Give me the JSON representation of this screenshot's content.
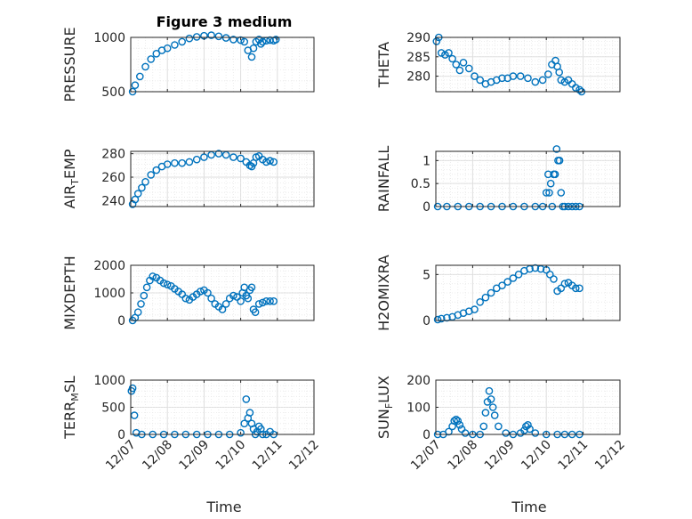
{
  "figure": {
    "title": "Figure 3 medium",
    "marker_color": "#0072BD",
    "x_tick_labels": [
      "12/07",
      "12/08",
      "12/09",
      "12/10",
      "12/11",
      "12/12"
    ],
    "x_label": "Time"
  },
  "chart_data": [
    {
      "type": "scatter",
      "ylabel": "PRESSURE",
      "ylim": [
        500,
        1000
      ],
      "yticks": [
        500,
        1000
      ],
      "xlim": [
        0,
        5
      ],
      "grid": true,
      "x": [
        0.05,
        0.12,
        0.25,
        0.4,
        0.55,
        0.7,
        0.85,
        1.0,
        1.2,
        1.4,
        1.6,
        1.8,
        2.0,
        2.2,
        2.4,
        2.6,
        2.8,
        3.0,
        3.1,
        3.2,
        3.3,
        3.35,
        3.42,
        3.5,
        3.55,
        3.6,
        3.7,
        3.8,
        3.9,
        3.96
      ],
      "y": [
        500,
        560,
        640,
        730,
        800,
        850,
        880,
        900,
        930,
        960,
        990,
        1005,
        1015,
        1020,
        1010,
        995,
        980,
        975,
        960,
        880,
        820,
        900,
        960,
        980,
        940,
        960,
        970,
        975,
        970,
        980
      ]
    },
    {
      "type": "scatter",
      "ylabel": "THETA",
      "ylim": [
        276,
        290
      ],
      "yticks": [
        280,
        285,
        290
      ],
      "xlim": [
        0,
        5
      ],
      "grid": true,
      "x": [
        0.02,
        0.08,
        0.15,
        0.25,
        0.35,
        0.45,
        0.55,
        0.65,
        0.75,
        0.9,
        1.05,
        1.2,
        1.35,
        1.5,
        1.65,
        1.8,
        1.95,
        2.1,
        2.3,
        2.5,
        2.7,
        2.9,
        3.05,
        3.15,
        3.25,
        3.3,
        3.35,
        3.4,
        3.5,
        3.6,
        3.7,
        3.8,
        3.9,
        3.96
      ],
      "y": [
        289,
        290,
        286,
        285.5,
        286,
        284.5,
        283,
        281.5,
        283.5,
        282,
        280,
        279,
        278,
        278.5,
        279,
        279.5,
        279.5,
        280,
        280,
        279.5,
        278.5,
        279,
        280.5,
        283,
        284,
        282.5,
        281,
        279,
        278.5,
        279,
        278,
        277,
        276.5,
        276
      ]
    },
    {
      "type": "scatter",
      "ylabel": "AIR_TEMP",
      "ylim": [
        235,
        282
      ],
      "yticks": [
        240,
        260,
        280
      ],
      "xlim": [
        0,
        5
      ],
      "grid": true,
      "x": [
        0.05,
        0.12,
        0.2,
        0.3,
        0.4,
        0.55,
        0.7,
        0.85,
        1.0,
        1.2,
        1.4,
        1.6,
        1.8,
        2.0,
        2.2,
        2.4,
        2.6,
        2.8,
        3.0,
        3.15,
        3.25,
        3.3,
        3.35,
        3.42,
        3.5,
        3.6,
        3.7,
        3.8,
        3.9
      ],
      "y": [
        237,
        241,
        246,
        251,
        256,
        262,
        266,
        269,
        271,
        272,
        272,
        273,
        275,
        277,
        279,
        280,
        279,
        277,
        276,
        273,
        270,
        269,
        272,
        277,
        278,
        275,
        273,
        274,
        273
      ]
    },
    {
      "type": "scatter",
      "ylabel": "RAINFALL",
      "ylim": [
        0,
        1.2
      ],
      "yticks": [
        0,
        0.5,
        1
      ],
      "xlim": [
        0,
        5
      ],
      "grid": true,
      "x": [
        0.05,
        0.3,
        0.6,
        0.9,
        1.2,
        1.5,
        1.8,
        2.1,
        2.4,
        2.7,
        2.9,
        3.0,
        3.05,
        3.08,
        3.12,
        3.16,
        3.2,
        3.24,
        3.28,
        3.32,
        3.36,
        3.4,
        3.45,
        3.5,
        3.6,
        3.7,
        3.8,
        3.9
      ],
      "y": [
        0,
        0,
        0,
        0,
        0,
        0,
        0,
        0,
        0,
        0,
        0,
        0.3,
        0.7,
        0.3,
        0.5,
        0,
        0.7,
        0.7,
        1.25,
        1.0,
        1.0,
        0.3,
        0,
        0,
        0,
        0,
        0,
        0
      ]
    },
    {
      "type": "scatter",
      "ylabel": "MIXDEPTH",
      "ylim": [
        0,
        2000
      ],
      "yticks": [
        0,
        1000,
        2000
      ],
      "xlim": [
        0,
        5
      ],
      "grid": true,
      "x": [
        0.05,
        0.12,
        0.2,
        0.28,
        0.36,
        0.44,
        0.52,
        0.6,
        0.7,
        0.8,
        0.9,
        1.0,
        1.1,
        1.2,
        1.3,
        1.4,
        1.5,
        1.6,
        1.7,
        1.8,
        1.9,
        2.0,
        2.1,
        2.2,
        2.3,
        2.4,
        2.5,
        2.6,
        2.7,
        2.8,
        2.9,
        3.0,
        3.05,
        3.1,
        3.15,
        3.2,
        3.25,
        3.3,
        3.35,
        3.4,
        3.5,
        3.6,
        3.7,
        3.8,
        3.9
      ],
      "y": [
        0,
        100,
        300,
        600,
        900,
        1200,
        1450,
        1600,
        1550,
        1450,
        1350,
        1300,
        1250,
        1150,
        1050,
        950,
        800,
        750,
        850,
        950,
        1050,
        1100,
        1000,
        800,
        600,
        500,
        400,
        600,
        800,
        900,
        850,
        700,
        1000,
        1200,
        900,
        800,
        1100,
        1200,
        400,
        300,
        600,
        650,
        700,
        700,
        700
      ]
    },
    {
      "type": "scatter",
      "ylabel": "H2OMIXRA",
      "ylim": [
        0,
        6
      ],
      "yticks": [
        0,
        5
      ],
      "xlim": [
        0,
        5
      ],
      "grid": true,
      "x": [
        0.05,
        0.15,
        0.3,
        0.45,
        0.6,
        0.75,
        0.9,
        1.05,
        1.2,
        1.35,
        1.5,
        1.65,
        1.8,
        1.95,
        2.1,
        2.25,
        2.4,
        2.55,
        2.7,
        2.85,
        3.0,
        3.1,
        3.2,
        3.3,
        3.4,
        3.5,
        3.6,
        3.7,
        3.8,
        3.9
      ],
      "y": [
        0.1,
        0.2,
        0.3,
        0.4,
        0.6,
        0.8,
        1.0,
        1.2,
        2.0,
        2.5,
        3.0,
        3.5,
        3.8,
        4.2,
        4.6,
        5.0,
        5.4,
        5.6,
        5.7,
        5.6,
        5.5,
        5.0,
        4.5,
        3.2,
        3.5,
        4.0,
        4.1,
        3.8,
        3.5,
        3.5
      ]
    },
    {
      "type": "scatter",
      "ylabel": "TERR_MSL",
      "ylim": [
        0,
        1000
      ],
      "yticks": [
        0,
        500,
        1000
      ],
      "xlim": [
        0,
        5
      ],
      "grid": true,
      "x": [
        0.02,
        0.05,
        0.1,
        0.15,
        0.3,
        0.6,
        0.9,
        1.2,
        1.5,
        1.8,
        2.1,
        2.4,
        2.7,
        3.0,
        3.1,
        3.15,
        3.2,
        3.25,
        3.3,
        3.35,
        3.4,
        3.45,
        3.5,
        3.55,
        3.6,
        3.7,
        3.8,
        3.9
      ],
      "y": [
        800,
        850,
        350,
        30,
        0,
        0,
        0,
        0,
        0,
        0,
        0,
        0,
        0,
        30,
        200,
        650,
        300,
        400,
        200,
        100,
        0,
        50,
        150,
        100,
        0,
        0,
        50,
        0
      ]
    },
    {
      "type": "scatter",
      "ylabel": "SUN_FLUX",
      "ylim": [
        0,
        200
      ],
      "yticks": [
        0,
        100,
        200
      ],
      "xlim": [
        0,
        5
      ],
      "grid": true,
      "x": [
        0.05,
        0.2,
        0.35,
        0.45,
        0.5,
        0.55,
        0.6,
        0.65,
        0.7,
        0.8,
        1.0,
        1.2,
        1.3,
        1.35,
        1.4,
        1.45,
        1.5,
        1.55,
        1.6,
        1.7,
        1.9,
        2.1,
        2.3,
        2.4,
        2.45,
        2.5,
        2.55,
        2.7,
        3.0,
        3.3,
        3.5,
        3.7,
        3.9
      ],
      "y": [
        0,
        0,
        10,
        30,
        50,
        55,
        50,
        35,
        20,
        5,
        0,
        0,
        30,
        80,
        120,
        160,
        130,
        100,
        70,
        30,
        5,
        0,
        5,
        15,
        30,
        35,
        20,
        5,
        0,
        0,
        0,
        0,
        0
      ]
    }
  ]
}
